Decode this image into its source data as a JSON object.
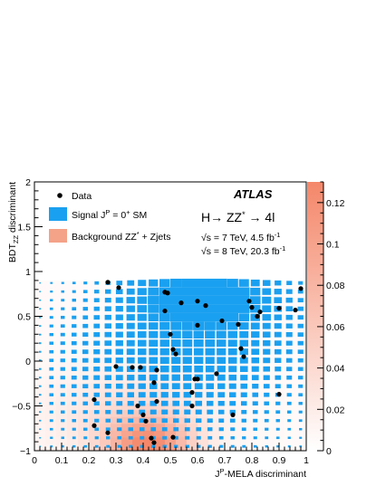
{
  "chart_data": {
    "type": "scatter",
    "xlabel_main": "-MELA discriminant",
    "xlabel_prefix": "J",
    "xlabel_sup": "P",
    "ylabel_main": "BDT",
    "ylabel_sub": "ZZ",
    "ylabel_suffix": " discriminant",
    "xlim": [
      0,
      1
    ],
    "ylim": [
      -1,
      2
    ],
    "x_ticks": [
      {
        "v": 0,
        "label": "0"
      },
      {
        "v": 0.1,
        "label": "0.1"
      },
      {
        "v": 0.2,
        "label": "0.2"
      },
      {
        "v": 0.3,
        "label": "0.3"
      },
      {
        "v": 0.4,
        "label": "0.4"
      },
      {
        "v": 0.5,
        "label": "0.5"
      },
      {
        "v": 0.6,
        "label": "0.6"
      },
      {
        "v": 0.7,
        "label": "0.7"
      },
      {
        "v": 0.8,
        "label": "0.8"
      },
      {
        "v": 0.9,
        "label": "0.9"
      },
      {
        "v": 1,
        "label": "1"
      }
    ],
    "y_ticks": [
      {
        "v": -1,
        "label": "−1"
      },
      {
        "v": -0.5,
        "label": "−0.5"
      },
      {
        "v": 0,
        "label": "0"
      },
      {
        "v": 0.5,
        "label": "0.5"
      },
      {
        "v": 1,
        "label": "1"
      },
      {
        "v": 1.5,
        "label": "1.5"
      },
      {
        "v": 2,
        "label": "2"
      }
    ],
    "z_range": [
      0,
      0.13
    ],
    "z_ticks": [
      {
        "v": 0,
        "label": "0"
      },
      {
        "v": 0.02,
        "label": "0.02"
      },
      {
        "v": 0.04,
        "label": "0.04"
      },
      {
        "v": 0.06,
        "label": "0.06"
      },
      {
        "v": 0.08,
        "label": "0.08"
      },
      {
        "v": 0.1,
        "label": "0.1"
      },
      {
        "v": 0.12,
        "label": "0.12"
      }
    ],
    "legend": {
      "data": "Data",
      "signal_prefix": "Signal J",
      "signal_sup": "P",
      "signal_mid": " = 0",
      "signal_sup2": "+",
      "signal_suffix": " SM",
      "background_prefix": "Background ZZ",
      "background_sup": "*",
      "background_suffix": " + Zjets"
    },
    "annotations": {
      "experiment": "ATLAS",
      "process_prefix": "H→ ZZ",
      "process_sup": "*",
      "process_suffix": " → 4l",
      "energy_7": "√s = 7 TeV, 4.5 fb",
      "energy_8": "√s = 8 TeV, 20.3 fb",
      "lumi_sup": "-1"
    },
    "colors": {
      "signal": "#1aa0f0",
      "background": "#f4a288",
      "data": "#000000",
      "z_low": "#ffffff",
      "z_high": "#f4876a"
    },
    "points": [
      [
        0.27,
        0.88
      ],
      [
        0.31,
        0.82
      ],
      [
        0.48,
        0.77
      ],
      [
        0.49,
        0.76
      ],
      [
        0.54,
        0.65
      ],
      [
        0.6,
        0.67
      ],
      [
        0.63,
        0.62
      ],
      [
        0.48,
        0.56
      ],
      [
        0.69,
        0.45
      ],
      [
        0.6,
        0.4
      ],
      [
        0.75,
        0.41
      ],
      [
        0.79,
        0.67
      ],
      [
        0.8,
        0.6
      ],
      [
        0.83,
        0.55
      ],
      [
        0.82,
        0.5
      ],
      [
        0.9,
        0.59
      ],
      [
        0.96,
        0.57
      ],
      [
        0.98,
        0.81
      ],
      [
        0.5,
        0.3
      ],
      [
        0.51,
        0.13
      ],
      [
        0.52,
        0.08
      ],
      [
        0.76,
        0.14
      ],
      [
        0.77,
        0.05
      ],
      [
        0.3,
        -0.06
      ],
      [
        0.36,
        -0.07
      ],
      [
        0.39,
        -0.07
      ],
      [
        0.45,
        -0.1
      ],
      [
        0.6,
        -0.2
      ],
      [
        0.59,
        -0.2
      ],
      [
        0.67,
        -0.14
      ],
      [
        0.22,
        -0.43
      ],
      [
        0.38,
        -0.5
      ],
      [
        0.4,
        -0.6
      ],
      [
        0.45,
        -0.45
      ],
      [
        0.44,
        -0.24
      ],
      [
        0.58,
        -0.35
      ],
      [
        0.58,
        -0.5
      ],
      [
        0.73,
        -0.6
      ],
      [
        0.9,
        -0.37
      ],
      [
        0.22,
        -0.72
      ],
      [
        0.27,
        -0.8
      ],
      [
        0.41,
        -0.67
      ],
      [
        0.43,
        -0.86
      ],
      [
        0.44,
        -0.91
      ],
      [
        0.51,
        -0.85
      ]
    ]
  }
}
